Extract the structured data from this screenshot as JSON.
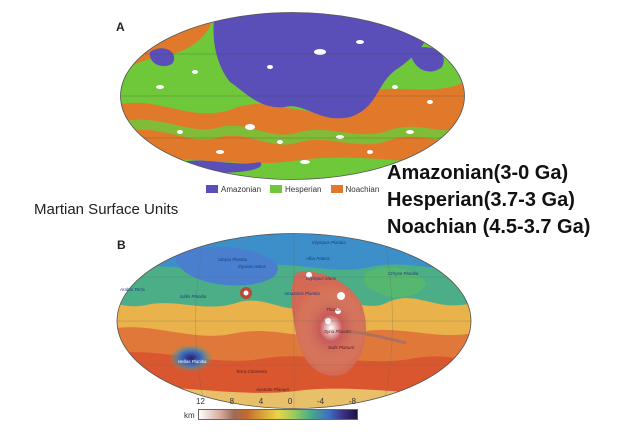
{
  "panel_a": {
    "label": "A",
    "legend": [
      {
        "name": "Amazonian",
        "color": "#5a4fb8"
      },
      {
        "name": "Hesperian",
        "color": "#6fc83a"
      },
      {
        "name": "Noachian",
        "color": "#e07a2a"
      }
    ]
  },
  "panel_b": {
    "label": "B",
    "place_labels": [
      "Olympus Planitia",
      "Utopia Planitia",
      "Elysium Mons",
      "Alba Patera",
      "Olympus Mons",
      "Arabia Terra",
      "Isidis Planitia",
      "Amazonis Planitia",
      "Chryse Planitia",
      "Tharsis",
      "Syria Planum",
      "Solis Planum",
      "Hellas Planitia",
      "Terra Cimmeria",
      "Australe Planum"
    ],
    "scale": {
      "unit": "km",
      "ticks": [
        "12",
        "8",
        "4",
        "0",
        "-4",
        "-8"
      ]
    }
  },
  "caption": "Martian Surface Units",
  "epochs": [
    "Amazonian(3-0 Ga)",
    "Hesperian(3.7-3 Ga)",
    "Noachian (4.5-3.7 Ga)"
  ]
}
